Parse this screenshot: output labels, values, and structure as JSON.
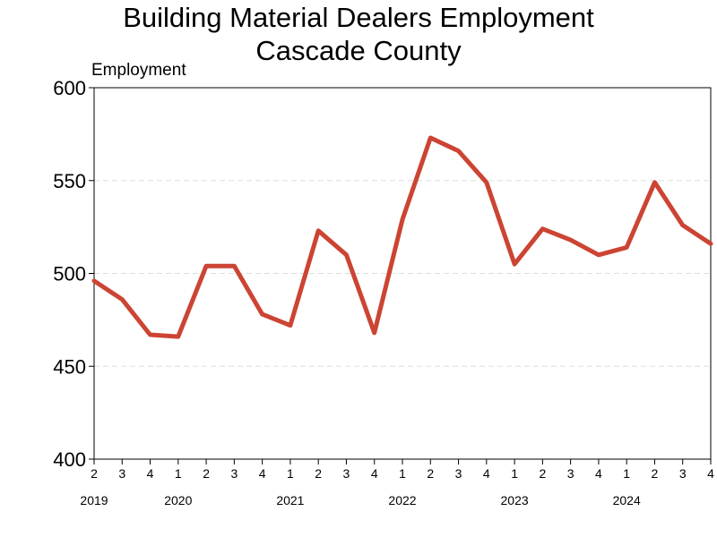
{
  "chart_data": {
    "type": "line",
    "title": "Building Material Dealers Employment",
    "subtitle": "Cascade County",
    "ylabel": "Employment",
    "xlabel": "",
    "ylim": [
      400,
      600
    ],
    "yticks": [
      400,
      450,
      500,
      550,
      600
    ],
    "grid": "horizontal dashed",
    "legend": "none",
    "x": [
      "2019 Q2",
      "2019 Q3",
      "2019 Q4",
      "2020 Q1",
      "2020 Q2",
      "2020 Q3",
      "2020 Q4",
      "2021 Q1",
      "2021 Q2",
      "2021 Q3",
      "2021 Q4",
      "2022 Q1",
      "2022 Q2",
      "2022 Q3",
      "2022 Q4",
      "2023 Q1",
      "2023 Q2",
      "2023 Q3",
      "2023 Q4",
      "2024 Q1",
      "2024 Q2",
      "2024 Q3",
      "2024 Q4"
    ],
    "x_tick_labels": [
      "2",
      "3",
      "4",
      "1",
      "2",
      "3",
      "4",
      "1",
      "2",
      "3",
      "4",
      "1",
      "2",
      "3",
      "4",
      "1",
      "2",
      "3",
      "4",
      "1",
      "2",
      "3",
      "4"
    ],
    "year_labels": [
      {
        "label": "2019",
        "quarter_index": 0
      },
      {
        "label": "2020",
        "quarter_index": 3
      },
      {
        "label": "2021",
        "quarter_index": 7
      },
      {
        "label": "2022",
        "quarter_index": 11
      },
      {
        "label": "2023",
        "quarter_index": 15
      },
      {
        "label": "2024",
        "quarter_index": 19
      }
    ],
    "series": [
      {
        "values": [
          496,
          486,
          467,
          466,
          504,
          504,
          478,
          472,
          523,
          510,
          468,
          529,
          573,
          566,
          549,
          505,
          524,
          518,
          510,
          514,
          549,
          526,
          516
        ],
        "color": "#cc4433"
      }
    ]
  }
}
